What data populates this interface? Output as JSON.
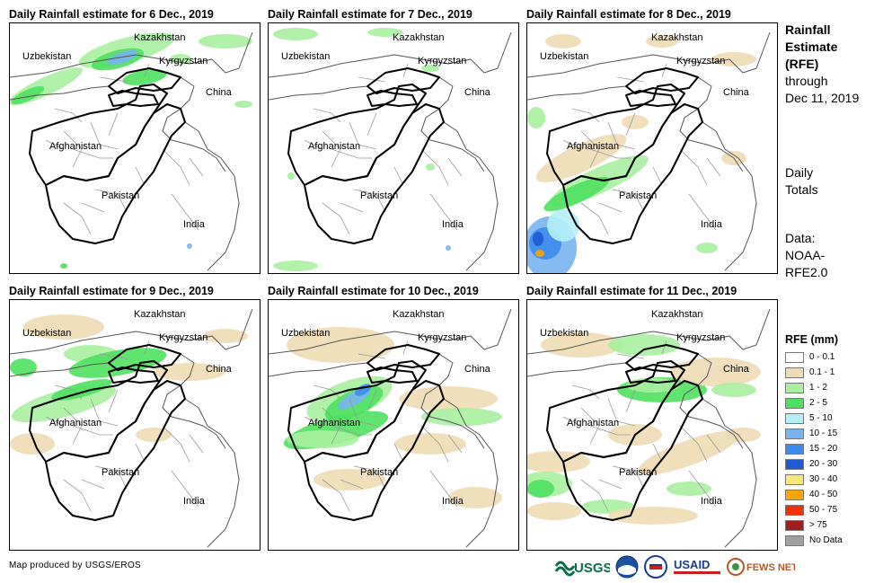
{
  "panels": [
    {
      "title": "Daily Rainfall estimate for 6 Dec., 2019"
    },
    {
      "title": "Daily Rainfall estimate for 7 Dec., 2019"
    },
    {
      "title": "Daily Rainfall estimate for 8 Dec., 2019"
    },
    {
      "title": "Daily Rainfall estimate for 9 Dec., 2019"
    },
    {
      "title": "Daily Rainfall estimate for 10 Dec., 2019"
    },
    {
      "title": "Daily Rainfall estimate for 11 Dec., 2019"
    }
  ],
  "map_labels": {
    "kazakhstan": "Kazakhstan",
    "uzbekistan": "Uzbekistan",
    "kyrgyzstan": "Kyrgyzstan",
    "china": "China",
    "afghanistan": "Afghanistan",
    "pakistan": "Pakistan",
    "india": "India"
  },
  "side": {
    "title_lines": [
      "Rainfall",
      "Estimate",
      "(RFE)"
    ],
    "through": "through",
    "date": "Dec 11, 2019",
    "totals_lines": [
      "Daily",
      "Totals"
    ],
    "data_lines": [
      "Data:",
      "NOAA-",
      "RFE2.0"
    ]
  },
  "legend": {
    "title": "RFE (mm)",
    "items": [
      {
        "label": "0 - 0.1",
        "color": "#ffffff"
      },
      {
        "label": "0.1 - 1",
        "color": "#f0dcb4"
      },
      {
        "label": "1 - 2",
        "color": "#a8f0a0"
      },
      {
        "label": "2 - 5",
        "color": "#50e060"
      },
      {
        "label": "5 - 10",
        "color": "#b4f0f8"
      },
      {
        "label": "10 - 15",
        "color": "#78b4f0"
      },
      {
        "label": "15 - 20",
        "color": "#3c8cf0"
      },
      {
        "label": "20 - 30",
        "color": "#1e5ad2"
      },
      {
        "label": "30 - 40",
        "color": "#fae678"
      },
      {
        "label": "40 - 50",
        "color": "#faa500"
      },
      {
        "label": "50 - 75",
        "color": "#f03200"
      },
      {
        "label": "> 75",
        "color": "#a01e1e"
      },
      {
        "label": "No Data",
        "color": "#a0a0a0"
      }
    ]
  },
  "credit": "Map produced by USGS/EROS",
  "logos": {
    "usgs": "USGS",
    "usaid": "USAID",
    "fewsnet": "FEWS NET"
  }
}
